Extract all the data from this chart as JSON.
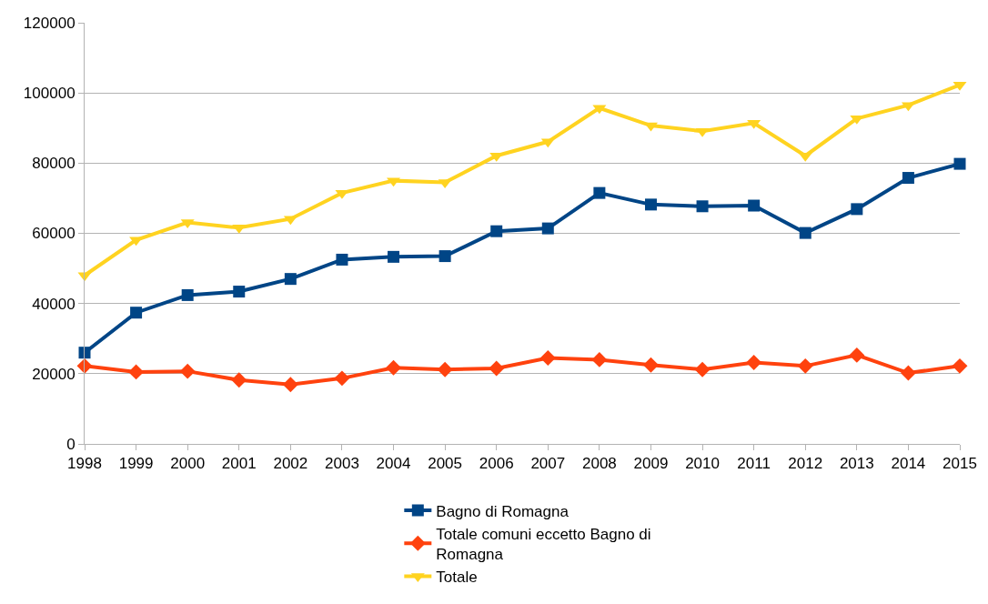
{
  "chart_data": {
    "type": "line",
    "categories": [
      "1998",
      "1999",
      "2000",
      "2001",
      "2002",
      "2003",
      "2004",
      "2005",
      "2006",
      "2007",
      "2008",
      "2009",
      "2010",
      "2011",
      "2012",
      "2013",
      "2014",
      "2015"
    ],
    "series": [
      {
        "name": "Bagno di Romagna",
        "color": "#004586",
        "marker": "square",
        "values": [
          26000,
          37400,
          42400,
          43400,
          47000,
          52500,
          53300,
          53500,
          60600,
          61400,
          71500,
          68200,
          67700,
          67900,
          60100,
          66900,
          75800,
          79800
        ]
      },
      {
        "name": "Totale comuni eccetto Bagno di Romagna",
        "color": "#ff420e",
        "marker": "diamond",
        "values": [
          22200,
          20500,
          20700,
          18200,
          16900,
          18700,
          21700,
          21200,
          21500,
          24500,
          24000,
          22500,
          21200,
          23200,
          22200,
          25300,
          20200,
          22200
        ]
      },
      {
        "name": "Totale",
        "color": "#ffd320",
        "marker": "triangle-down",
        "values": [
          48000,
          58100,
          63100,
          61600,
          64100,
          71500,
          75000,
          74500,
          82100,
          86100,
          95700,
          90700,
          89100,
          91400,
          82100,
          92700,
          96500,
          102300
        ]
      }
    ],
    "ylim": [
      0,
      120000
    ],
    "yticks": [
      0,
      20000,
      40000,
      60000,
      80000,
      100000,
      120000
    ],
    "grid": "y",
    "legend": "bottom",
    "line_style": "solid"
  }
}
